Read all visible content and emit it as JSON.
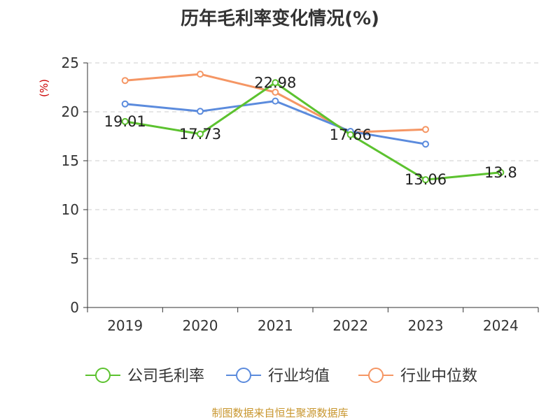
{
  "chart_data": {
    "type": "line",
    "title": "历年毛利率变化情况(%)",
    "ylabel": "(%)",
    "xlabel": "",
    "categories": [
      "2019",
      "2020",
      "2021",
      "2022",
      "2023",
      "2024"
    ],
    "ylim": [
      0,
      25
    ],
    "yticks": [
      0,
      5,
      10,
      15,
      20,
      25
    ],
    "grid": true,
    "legend_position": "bottom",
    "series": [
      {
        "name": "公司毛利率",
        "color": "#5cc22f",
        "values": [
          19.01,
          17.73,
          22.98,
          17.66,
          13.06,
          13.8
        ],
        "labels": [
          "19.01",
          "17.73",
          "22.98",
          "17.66",
          "13.06",
          "13.8"
        ]
      },
      {
        "name": "行业均值",
        "color": "#5b8bdd",
        "values": [
          20.8,
          20.05,
          21.1,
          18.0,
          16.7,
          null
        ]
      },
      {
        "name": "行业中位数",
        "color": "#f59664",
        "values": [
          23.2,
          23.85,
          22.0,
          17.9,
          18.2,
          null
        ]
      }
    ]
  },
  "source_text": "制图数据来自恒生聚源数据库"
}
